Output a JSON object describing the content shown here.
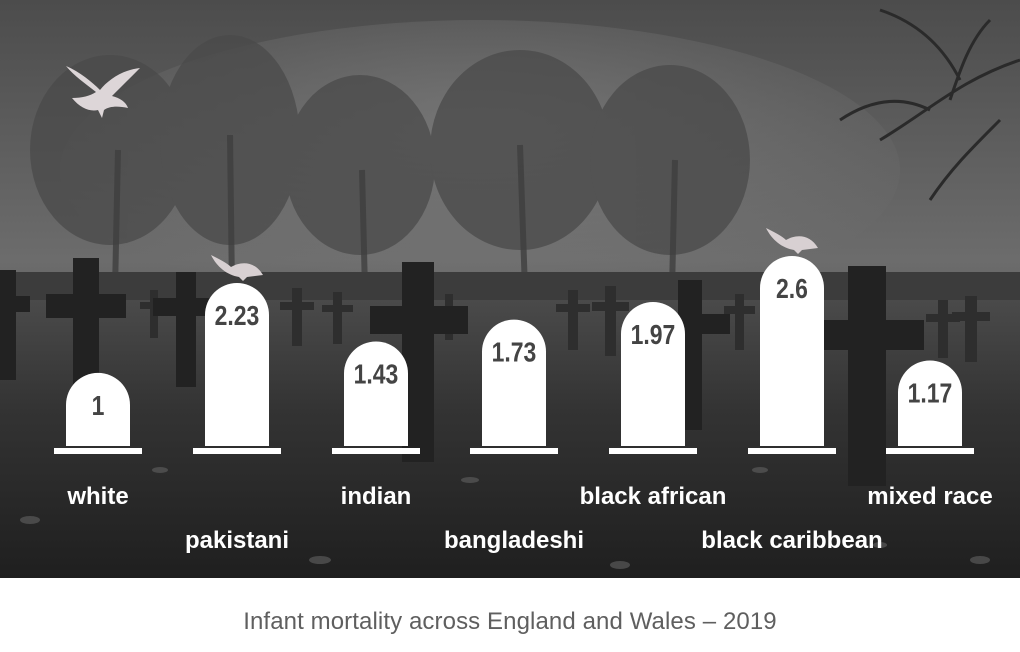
{
  "caption": "Infant mortality across England and Wales – 2019",
  "chart_data": {
    "type": "bar",
    "categories": [
      "white",
      "pakistani",
      "indian",
      "bangladeshi",
      "black african",
      "black caribbean",
      "mixed race"
    ],
    "values": [
      1,
      2.23,
      1.43,
      1.73,
      1.97,
      2.6,
      1.17
    ],
    "value_labels": [
      "1",
      "2.23",
      "1.43",
      "1.73",
      "1.97",
      "2.6",
      "1.17"
    ],
    "ylim": [
      0,
      2.6
    ],
    "grid": false,
    "legend": "none",
    "mark_style": "tombstone",
    "label_rows": [
      "top",
      "bottom",
      "top",
      "bottom",
      "top",
      "bottom",
      "top"
    ],
    "colors": {
      "tombstone": "#ffffff",
      "label": "#ffffff",
      "value_text": "#444444",
      "background": "#2f2f2f",
      "caption": "#5f5f5f"
    }
  }
}
